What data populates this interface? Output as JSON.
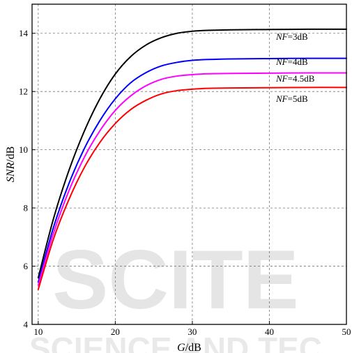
{
  "chart_data": {
    "type": "line",
    "title": "",
    "xlabel": {
      "italic": "G",
      "unit": "/dB"
    },
    "ylabel": {
      "italic": "SNR",
      "unit": "/dB"
    },
    "xlim": [
      9.2,
      50
    ],
    "ylim": [
      4,
      15
    ],
    "x_ticks": [
      10,
      20,
      30,
      40,
      50
    ],
    "y_ticks": [
      4,
      6,
      8,
      10,
      12,
      14
    ],
    "grid": true,
    "grid_style": "dashed",
    "legend": "inline labels near curve ends",
    "series": [
      {
        "name": "NF=3dB",
        "label_italic": "NF",
        "label_rest": "=3dB",
        "color": "#000000",
        "x": [
          10,
          12,
          14,
          16,
          18,
          20,
          22,
          24,
          26,
          28,
          30,
          32,
          35,
          40,
          45,
          50
        ],
        "y": [
          5.6,
          7.65,
          9.3,
          10.65,
          11.75,
          12.6,
          13.2,
          13.6,
          13.85,
          14.0,
          14.07,
          14.1,
          14.12,
          14.13,
          14.14,
          14.14
        ]
      },
      {
        "name": "NF=4dB",
        "label_italic": "NF",
        "label_rest": "=4dB",
        "color": "#0000ff",
        "x": [
          10,
          12,
          14,
          16,
          18,
          20,
          22,
          24,
          26,
          28,
          30,
          32,
          35,
          40,
          45,
          50
        ],
        "y": [
          5.45,
          7.35,
          8.85,
          10.05,
          11.0,
          11.75,
          12.3,
          12.65,
          12.88,
          13.0,
          13.07,
          13.1,
          13.12,
          13.13,
          13.14,
          13.14
        ]
      },
      {
        "name": "NF=4.5dB",
        "label_italic": "NF",
        "label_rest": "=4.5dB",
        "color": "#ff00ff",
        "x": [
          10,
          12,
          14,
          16,
          18,
          20,
          22,
          24,
          26,
          28,
          30,
          32,
          35,
          40,
          45,
          50
        ],
        "y": [
          5.35,
          7.15,
          8.6,
          9.75,
          10.65,
          11.35,
          11.85,
          12.2,
          12.42,
          12.53,
          12.58,
          12.61,
          12.62,
          12.63,
          12.64,
          12.64
        ]
      },
      {
        "name": "NF=5dB",
        "label_italic": "NF",
        "label_rest": "=5dB",
        "color": "#ff0000",
        "x": [
          10,
          12,
          14,
          16,
          18,
          20,
          22,
          24,
          26,
          28,
          30,
          32,
          35,
          40,
          45,
          50
        ],
        "y": [
          5.2,
          6.95,
          8.3,
          9.4,
          10.25,
          10.9,
          11.38,
          11.7,
          11.92,
          12.03,
          12.08,
          12.11,
          12.12,
          12.13,
          12.14,
          12.14
        ]
      }
    ],
    "watermark": [
      "SCITE",
      "SCIENCE AND TEC"
    ]
  }
}
